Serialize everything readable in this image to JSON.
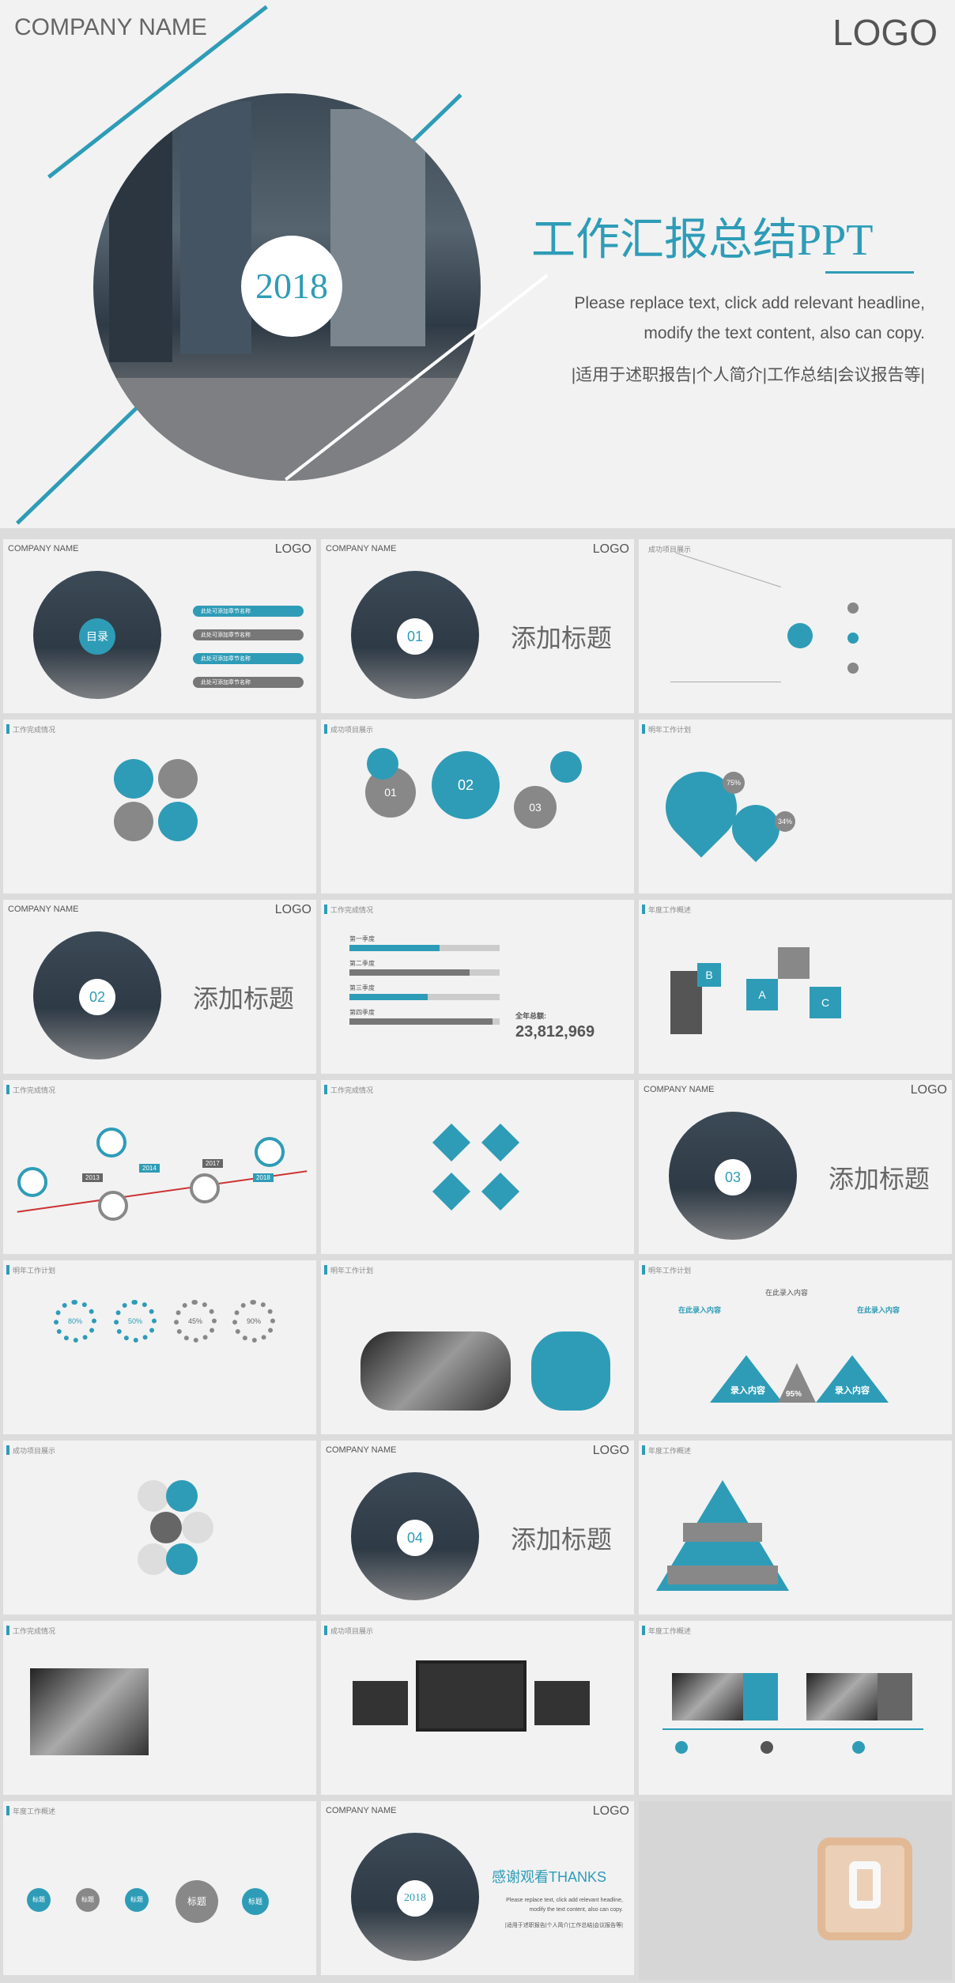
{
  "colors": {
    "accent": "#2e9cb7",
    "gray": "#6b6b6b",
    "bg": "#f2f2f2"
  },
  "hero": {
    "company": "COMPANY NAME",
    "logo": "LOGO",
    "year": "2018",
    "title": "工作汇报总结PPT",
    "sub1": "Please replace text, click add relevant headline,",
    "sub2": "modify the text content, also can copy.",
    "tags": "|适用于述职报告|个人简介|工作总结|会议报告等|"
  },
  "common": {
    "company": "COMPANY NAME",
    "logo": "LOGO",
    "add_title": "添加标题",
    "section_hdr": "工作完成情况"
  },
  "toc": {
    "label": "目录",
    "items": [
      "此处可添加章节名称",
      "此处可添加章节名称",
      "此处可添加章节名称",
      "此处可添加章节名称"
    ]
  },
  "sections": {
    "s1": "01",
    "s2": "02",
    "s3": "03",
    "s4": "04"
  },
  "slide_headers": {
    "a3": "成功项目展示",
    "b1": "工作完成情况",
    "b2": "成功项目展示",
    "b3": "明年工作计划",
    "c2": "工作完成情况",
    "c3": "年度工作概述",
    "d1": "工作完成情况",
    "d2": "工作完成情况",
    "e1": "明年工作计划",
    "e2": "明年工作计划",
    "e3": "明年工作计划",
    "f1": "成功项目展示",
    "f3": "年度工作概述",
    "g1": "工作完成情况",
    "g2": "成功项目展示",
    "g3": "年度工作概述",
    "h1": "年度工作概述"
  },
  "gears": {
    "g1": "01",
    "g2": "02",
    "g3": "03"
  },
  "hearts": {
    "p1": "75%",
    "p2": "34%"
  },
  "bars": {
    "labels": [
      "第一季度",
      "第二季度",
      "第三季度",
      "第四季度"
    ],
    "values": [
      0.6,
      0.8,
      0.52,
      0.95
    ],
    "total_label": "全年总额:",
    "total": "23,812,969"
  },
  "puzzle": {
    "a": "A",
    "b": "B",
    "c": "C"
  },
  "timeline": {
    "years": [
      "2013",
      "2014",
      "2017",
      "2018"
    ]
  },
  "donuts": {
    "values": [
      "80%",
      "50%",
      "45%",
      "90%"
    ]
  },
  "triangles": {
    "left_head": "在此录入内容",
    "center_head": "在此录入内容",
    "right_head": "在此录入内容",
    "left": "录入内容",
    "right": "录入内容",
    "center": "95%"
  },
  "steps": {
    "labels": [
      "标题",
      "标题",
      "标题",
      "标题",
      "标题"
    ]
  },
  "final": {
    "year": "2018",
    "thanks": "感谢观看THANKS",
    "sub1": "Please replace text, click add relevant headline,",
    "sub2": "modify the text content, also can copy.",
    "tags": "|适用于述职报告|个人简介|工作总结|会议报告等|"
  }
}
